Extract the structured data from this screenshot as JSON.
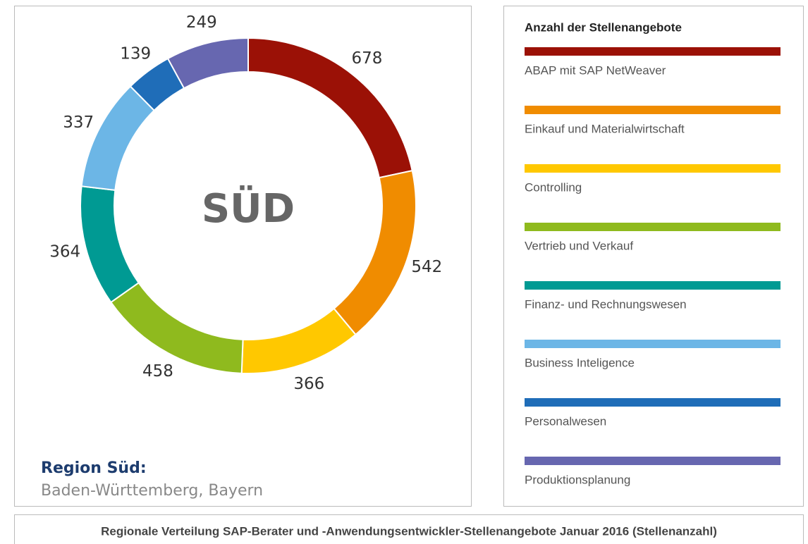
{
  "chart_data": {
    "type": "donut",
    "center_label": "SÜD",
    "legend_title": "Anzahl der Stellenangebote",
    "region_title": "Region Süd:",
    "region_subtitle": "Baden-Württemberg, Bayern",
    "caption": "Regionale Verteilung SAP-Berater und -Anwendungsentwickler-Stellenangebote Januar 2016 (Stellenanzahl)",
    "categories": [
      "ABAP mit SAP NetWeaver",
      "Einkauf und Materialwirtschaft",
      "Controlling",
      "Vertrieb und Verkauf",
      "Finanz- und Rechnungswesen",
      "Business Inteligence",
      "Personalwesen",
      "Produktionsplanung"
    ],
    "values": [
      678,
      542,
      366,
      458,
      364,
      337,
      139,
      249
    ],
    "colors": [
      "#9b1106",
      "#f08c00",
      "#ffc800",
      "#8fba1e",
      "#009a93",
      "#6cb6e6",
      "#1f6db8",
      "#6767b0"
    ]
  }
}
